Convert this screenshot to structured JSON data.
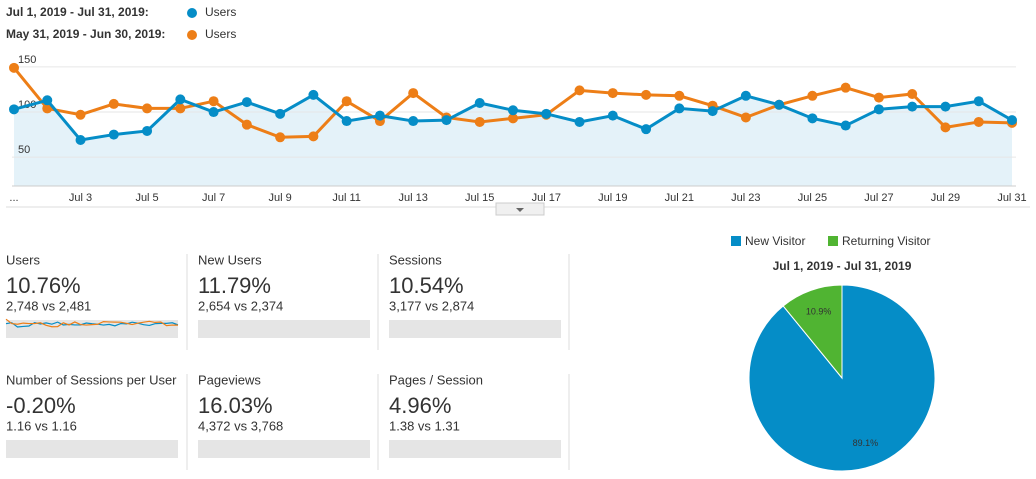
{
  "chart_data": [
    {
      "type": "line",
      "categories": [
        "...",
        null,
        "Jul 3",
        null,
        "Jul 5",
        null,
        "Jul 7",
        null,
        "Jul 9",
        null,
        "Jul 11",
        null,
        "Jul 13",
        null,
        "Jul 15",
        null,
        "Jul 17",
        null,
        "Jul 19",
        null,
        "Jul 21",
        null,
        "Jul 23",
        null,
        "Jul 25",
        null,
        "Jul 27",
        null,
        "Jul 29",
        null,
        "Jul 31"
      ],
      "series": [
        {
          "name": "Users",
          "period": "Jul 1, 2019 - Jul 31, 2019:",
          "color": "#058dc7",
          "values": [
            103,
            113,
            69,
            75,
            79,
            114,
            100,
            111,
            98,
            119,
            90,
            96,
            90,
            91,
            110,
            102,
            98,
            89,
            96,
            81,
            104,
            101,
            118,
            108,
            93,
            85,
            103,
            106,
            106,
            112,
            91
          ]
        },
        {
          "name": "Users",
          "period": "May 31, 2019 - Jun 30, 2019:",
          "color": "#ed7e17",
          "values": [
            149,
            104,
            97,
            109,
            104,
            104,
            112,
            86,
            72,
            73,
            112,
            90,
            121,
            94,
            89,
            93,
            97,
            124,
            121,
            119,
            118,
            107,
            94,
            108,
            118,
            127,
            116,
            120,
            83,
            89,
            88
          ]
        }
      ],
      "ylim": [
        18,
        161
      ],
      "yticks": [
        50,
        100,
        150
      ],
      "grid": true
    },
    {
      "type": "pie",
      "title": "Jul 1, 2019 - Jul 31, 2019",
      "categories": [
        "New Visitor",
        "Returning Visitor"
      ],
      "values": [
        89.1,
        10.9
      ],
      "value_labels": [
        "89.1%",
        "10.9%"
      ],
      "colors": [
        "#058dc7",
        "#50b432"
      ]
    }
  ],
  "metrics": [
    {
      "label": "Users",
      "change": "10.76%",
      "comparison": "2,748 vs 2,481",
      "color": "#3c9c3c"
    },
    {
      "label": "New Users",
      "change": "11.79%",
      "comparison": "2,654 vs 2,374",
      "color": "#3c9c3c"
    },
    {
      "label": "Sessions",
      "change": "10.54%",
      "comparison": "3,177 vs 2,874",
      "color": "#3c9c3c"
    },
    {
      "label": "Number of Sessions per User",
      "change": "-0.20%",
      "comparison": "1.16 vs 1.16",
      "color": "#d9453d"
    },
    {
      "label": "Pageviews",
      "change": "16.03%",
      "comparison": "4,372 vs 3,768",
      "color": "#3c9c3c"
    },
    {
      "label": "Pages / Session",
      "change": "4.96%",
      "comparison": "1.38 vs 1.31",
      "color": "#3c9c3c"
    }
  ]
}
